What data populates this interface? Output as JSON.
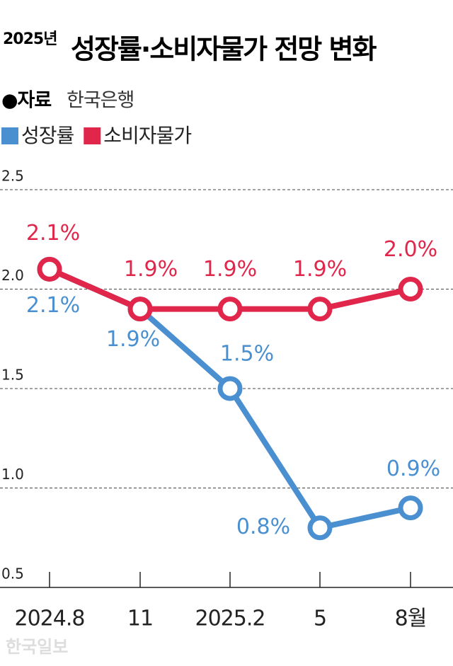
{
  "chart_data": {
    "type": "line",
    "title_year": "2025년",
    "title": "성장률·소비자물가 전망 변화",
    "source_label": "●자료",
    "source": "한국은행",
    "watermark": "한국일보",
    "categories": [
      "2024.8",
      "11",
      "2025.2",
      "5",
      "8월"
    ],
    "series": [
      {
        "name": "성장률",
        "color": "#4a90d0",
        "values": [
          2.1,
          1.9,
          1.5,
          0.8,
          0.9
        ],
        "value_labels": [
          "2.1%",
          "1.9%",
          "1.5%",
          "0.8%",
          "0.9%"
        ]
      },
      {
        "name": "소비자물가",
        "color": "#e0264a",
        "values": [
          2.1,
          1.9,
          1.9,
          1.9,
          2.0
        ],
        "value_labels": [
          "2.1%",
          "1.9%",
          "1.9%",
          "1.9%",
          "2.0%"
        ]
      }
    ],
    "ylim": [
      0.5,
      2.5
    ],
    "yticks": [
      0.5,
      {
        "value": 1.0,
        "label": "1.0"
      },
      1.5,
      {
        "value": 2.0,
        "label": "2.0"
      },
      2.5
    ],
    "grid": true
  }
}
